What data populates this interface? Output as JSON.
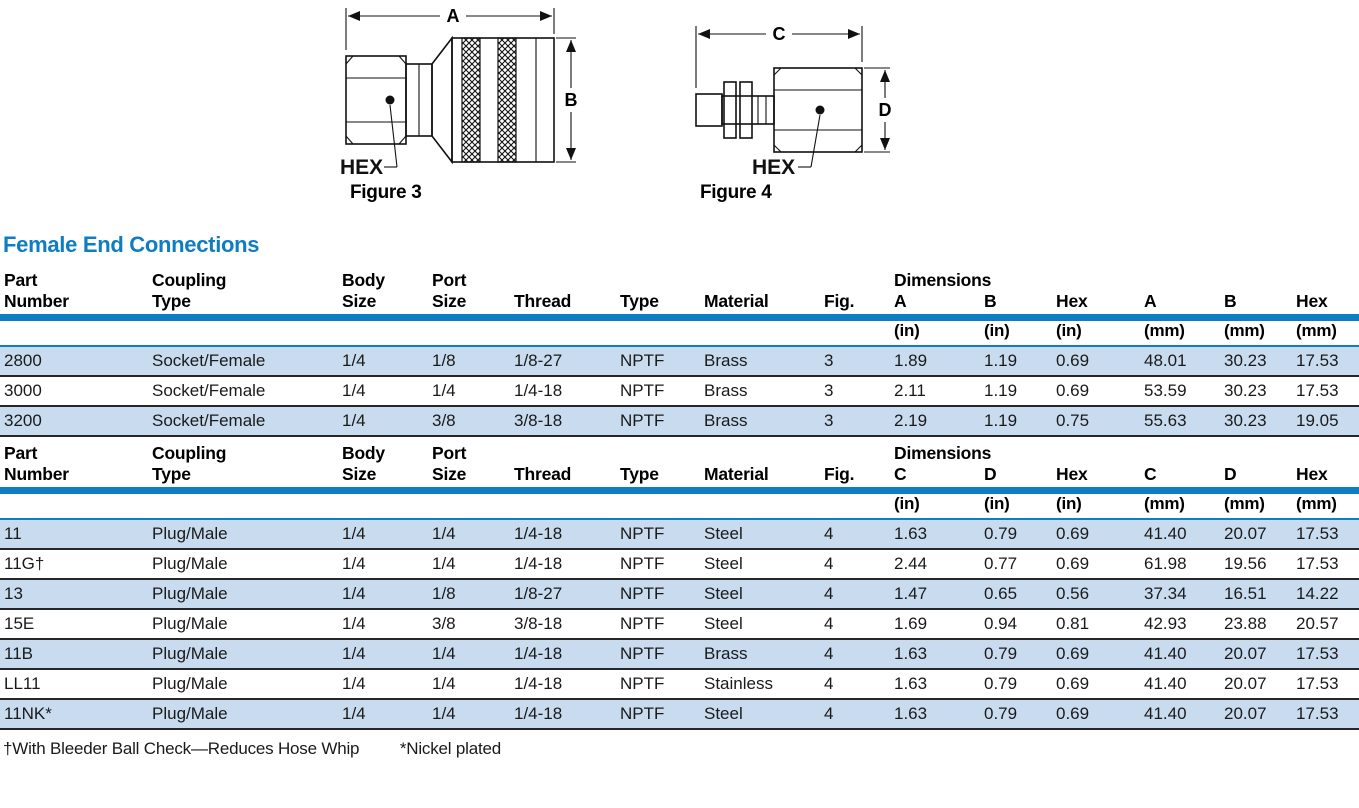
{
  "colors": {
    "accent": "#0e7dc1",
    "row_alt": "#c8dbef"
  },
  "figures": [
    {
      "caption": "Figure 3",
      "hex_label": "HEX",
      "dim_length": "A",
      "dim_height": "B"
    },
    {
      "caption": "Figure 4",
      "hex_label": "HEX",
      "dim_length": "C",
      "dim_height": "D"
    }
  ],
  "section_title": "Female End Connections",
  "tables": [
    {
      "headers": {
        "part": [
          "Part",
          "Number"
        ],
        "coupling": [
          "Coupling",
          "Type"
        ],
        "body": [
          "Body",
          "Size"
        ],
        "port": [
          "Port",
          "Size"
        ],
        "thread": "Thread",
        "type": "Type",
        "material": "Material",
        "fig": "Fig.",
        "dimensions_label": "Dimensions",
        "dims": [
          "A",
          "B",
          "Hex",
          "A",
          "B",
          "Hex"
        ],
        "units": [
          "(in)",
          "(in)",
          "(in)",
          "(mm)",
          "(mm)",
          "(mm)"
        ]
      },
      "rows": [
        [
          "2800",
          "Socket/Female",
          "1/4",
          "1/8",
          "1/8-27",
          "NPTF",
          "Brass",
          "3",
          "1.89",
          "1.19",
          "0.69",
          "48.01",
          "30.23",
          "17.53"
        ],
        [
          "3000",
          "Socket/Female",
          "1/4",
          "1/4",
          "1/4-18",
          "NPTF",
          "Brass",
          "3",
          "2.11",
          "1.19",
          "0.69",
          "53.59",
          "30.23",
          "17.53"
        ],
        [
          "3200",
          "Socket/Female",
          "1/4",
          "3/8",
          "3/8-18",
          "NPTF",
          "Brass",
          "3",
          "2.19",
          "1.19",
          "0.75",
          "55.63",
          "30.23",
          "19.05"
        ]
      ]
    },
    {
      "headers": {
        "part": [
          "Part",
          "Number"
        ],
        "coupling": [
          "Coupling",
          "Type"
        ],
        "body": [
          "Body",
          "Size"
        ],
        "port": [
          "Port",
          "Size"
        ],
        "thread": "Thread",
        "type": "Type",
        "material": "Material",
        "fig": "Fig.",
        "dimensions_label": "Dimensions",
        "dims": [
          "C",
          "D",
          "Hex",
          "C",
          "D",
          "Hex"
        ],
        "units": [
          "(in)",
          "(in)",
          "(in)",
          "(mm)",
          "(mm)",
          "(mm)"
        ]
      },
      "rows": [
        [
          "11",
          "Plug/Male",
          "1/4",
          "1/4",
          "1/4-18",
          "NPTF",
          "Steel",
          "4",
          "1.63",
          "0.79",
          "0.69",
          "41.40",
          "20.07",
          "17.53"
        ],
        [
          "11G†",
          "Plug/Male",
          "1/4",
          "1/4",
          "1/4-18",
          "NPTF",
          "Steel",
          "4",
          "2.44",
          "0.77",
          "0.69",
          "61.98",
          "19.56",
          "17.53"
        ],
        [
          "13",
          "Plug/Male",
          "1/4",
          "1/8",
          "1/8-27",
          "NPTF",
          "Steel",
          "4",
          "1.47",
          "0.65",
          "0.56",
          "37.34",
          "16.51",
          "14.22"
        ],
        [
          "15E",
          "Plug/Male",
          "1/4",
          "3/8",
          "3/8-18",
          "NPTF",
          "Steel",
          "4",
          "1.69",
          "0.94",
          "0.81",
          "42.93",
          "23.88",
          "20.57"
        ],
        [
          "11B",
          "Plug/Male",
          "1/4",
          "1/4",
          "1/4-18",
          "NPTF",
          "Brass",
          "4",
          "1.63",
          "0.79",
          "0.69",
          "41.40",
          "20.07",
          "17.53"
        ],
        [
          "LL11",
          "Plug/Male",
          "1/4",
          "1/4",
          "1/4-18",
          "NPTF",
          "Stainless",
          "4",
          "1.63",
          "0.79",
          "0.69",
          "41.40",
          "20.07",
          "17.53"
        ],
        [
          "11NK*",
          "Plug/Male",
          "1/4",
          "1/4",
          "1/4-18",
          "NPTF",
          "Steel",
          "4",
          "1.63",
          "0.79",
          "0.69",
          "41.40",
          "20.07",
          "17.53"
        ]
      ]
    }
  ],
  "footnotes": [
    "†With Bleeder Ball Check—Reduces Hose Whip",
    "*Nickel plated"
  ]
}
